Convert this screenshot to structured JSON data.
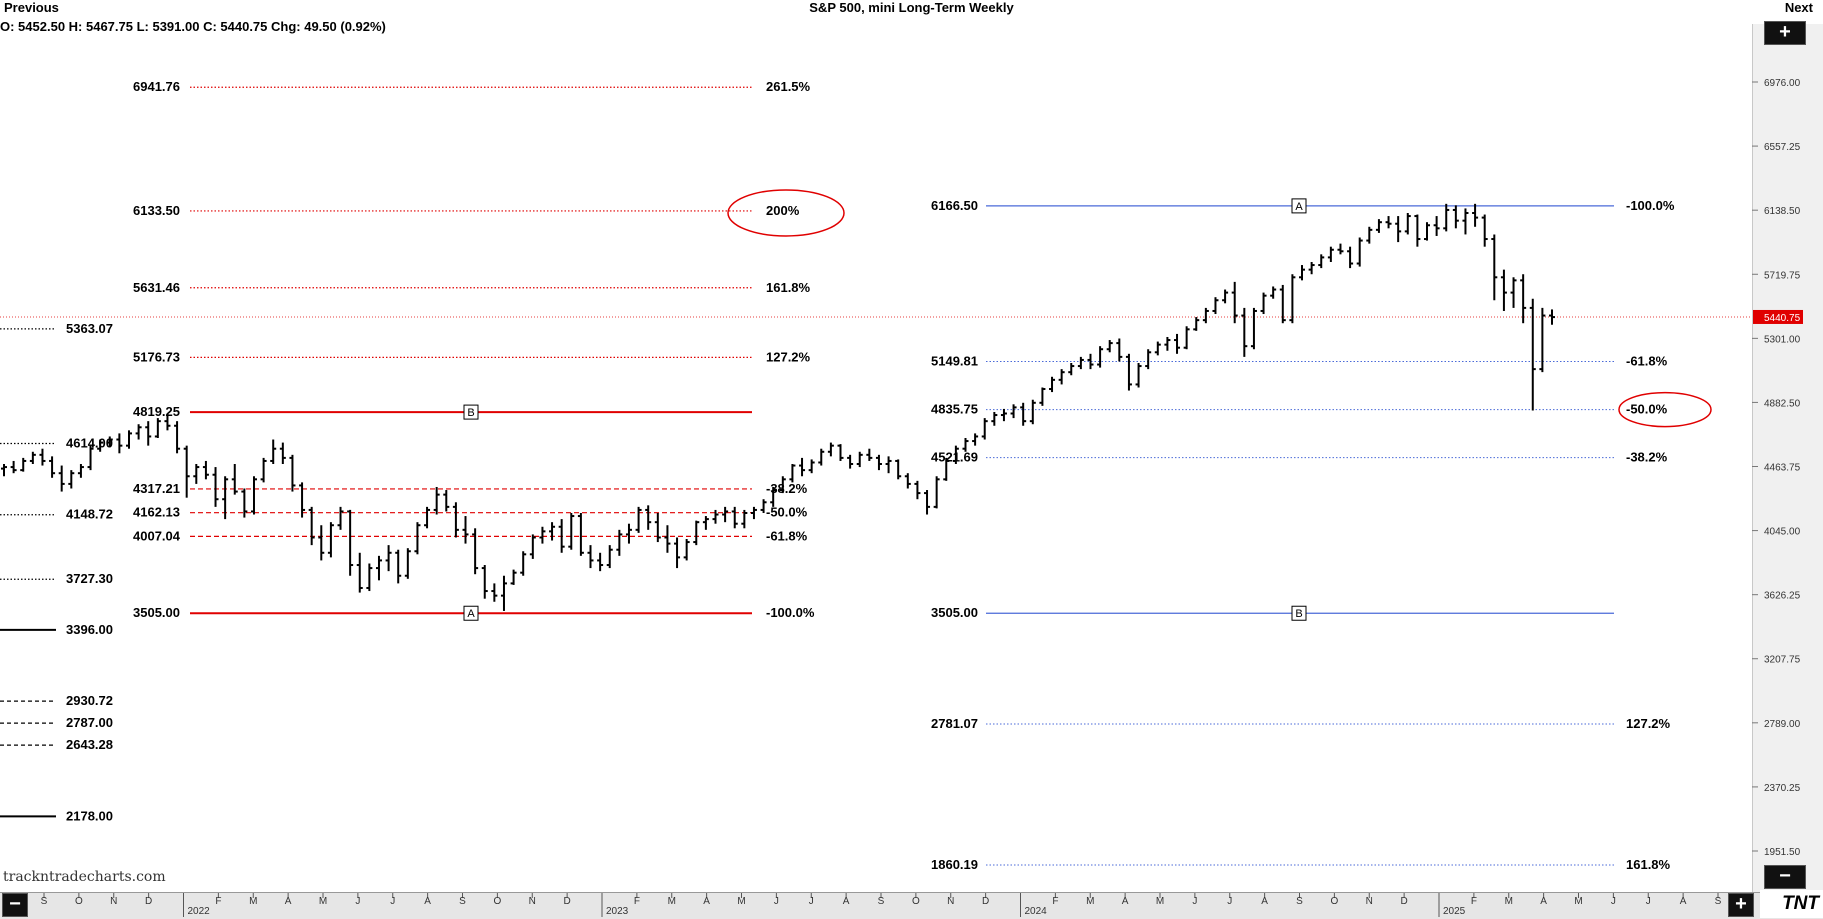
{
  "header": {
    "previous": "Previous",
    "title": "S&P 500, mini Long-Term Weekly",
    "next": "Next"
  },
  "ohlc_text": "O: 5452.50 H: 5467.75  L: 5391.00  C: 5440.75  Chg: 49.50 (0.92%)",
  "watermark": "trackntradecharts.com",
  "logo": "TNT",
  "controls": {
    "plus": "+",
    "minus": "−"
  },
  "colors": {
    "red": "#e00000",
    "blue": "#4a6ad8",
    "bars": "#000000"
  },
  "chart_data": {
    "type": "bar",
    "title": "S&P 500, mini Long-Term Weekly",
    "y_axis_ticks": [
      "6976.00",
      "6557.25",
      "6138.50",
      "5719.75",
      "5301.00",
      "4882.50",
      "4463.75",
      "4045.00",
      "3626.25",
      "3207.75",
      "2789.00",
      "2370.25",
      "1951.50"
    ],
    "y_range": [
      1860,
      6976
    ],
    "last_price_label": "5440.75",
    "x_axis": {
      "months": [
        "S",
        "O",
        "N",
        "D",
        "2022",
        "F",
        "M",
        "A",
        "M",
        "J",
        "J",
        "A",
        "S",
        "O",
        "N",
        "D",
        "2023",
        "F",
        "M",
        "A",
        "M",
        "J",
        "J",
        "A",
        "S",
        "O",
        "N",
        "D",
        "2024",
        "F",
        "M",
        "A",
        "M",
        "J",
        "J",
        "A",
        "S",
        "O",
        "N",
        "D",
        "2025",
        "F",
        "M",
        "A",
        "M",
        "J",
        "J",
        "A",
        "S"
      ],
      "years": [
        "2022",
        "2023",
        "2024",
        "2025"
      ]
    },
    "left_levels": [
      {
        "value": "5363.07",
        "style": "dotted"
      },
      {
        "value": "4614.00",
        "style": "dotted"
      },
      {
        "value": "4148.72",
        "style": "dotted"
      },
      {
        "value": "3727.30",
        "style": "dotted"
      },
      {
        "value": "3396.00",
        "style": "solid"
      },
      {
        "value": "2930.72",
        "style": "dashed"
      },
      {
        "value": "2787.00",
        "style": "dashed"
      },
      {
        "value": "2643.28",
        "style": "dashed"
      },
      {
        "value": "2178.00",
        "style": "solid"
      }
    ],
    "red_fib_levels": [
      {
        "price": "6941.76",
        "pct": "261.5%",
        "style": "dotted"
      },
      {
        "price": "6133.50",
        "pct": "200%",
        "style": "dotted",
        "circled": true
      },
      {
        "price": "5631.46",
        "pct": "161.8%",
        "style": "dotted"
      },
      {
        "price": "5176.73",
        "pct": "127.2%",
        "style": "dotted"
      },
      {
        "price": "4819.25",
        "pct": "",
        "style": "solid",
        "marker": "B"
      },
      {
        "price": "4317.21",
        "pct": "-38.2%",
        "style": "dashed"
      },
      {
        "price": "4162.13",
        "pct": "-50.0%",
        "style": "dashed"
      },
      {
        "price": "4007.04",
        "pct": "-61.8%",
        "style": "dashed"
      },
      {
        "price": "3505.00",
        "pct": "-100.0%",
        "style": "solid",
        "marker": "A"
      }
    ],
    "blue_fib_levels": [
      {
        "price": "6166.50",
        "pct": "-100.0%",
        "style": "solid",
        "marker": "A"
      },
      {
        "price": "5149.81",
        "pct": "-61.8%",
        "style": "dotted"
      },
      {
        "price": "4835.75",
        "pct": "-50.0%",
        "style": "dotted",
        "circled": true
      },
      {
        "price": "4521.69",
        "pct": "-38.2%",
        "style": "dotted"
      },
      {
        "price": "3505.00",
        "pct": "",
        "style": "solid",
        "marker": "B"
      },
      {
        "price": "2781.07",
        "pct": "127.2%",
        "style": "dotted"
      },
      {
        "price": "1860.19",
        "pct": "161.8%",
        "style": "dotted"
      }
    ],
    "series": [
      {
        "values": [
          [
            4450,
            4480,
            4400,
            4460
          ],
          [
            4460,
            4500,
            4420,
            4440
          ],
          [
            4440,
            4520,
            4430,
            4500
          ],
          [
            4500,
            4560,
            4480,
            4540
          ],
          [
            4540,
            4580,
            4470,
            4500
          ],
          [
            4500,
            4530,
            4390,
            4420
          ],
          [
            4420,
            4470,
            4300,
            4350
          ],
          [
            4350,
            4440,
            4320,
            4420
          ],
          [
            4420,
            4480,
            4390,
            4460
          ],
          [
            4460,
            4600,
            4440,
            4580
          ],
          [
            4580,
            4640,
            4560,
            4620
          ],
          [
            4620,
            4660,
            4590,
            4640
          ],
          [
            4640,
            4680,
            4550,
            4600
          ],
          [
            4600,
            4700,
            4580,
            4680
          ],
          [
            4680,
            4740,
            4640,
            4720
          ],
          [
            4720,
            4760,
            4600,
            4660
          ],
          [
            4660,
            4780,
            4650,
            4760
          ],
          [
            4760,
            4810,
            4700,
            4730
          ],
          [
            4730,
            4760,
            4550,
            4580
          ],
          [
            4580,
            4600,
            4260,
            4400
          ],
          [
            4400,
            4480,
            4350,
            4460
          ],
          [
            4460,
            4500,
            4380,
            4410
          ],
          [
            4410,
            4460,
            4200,
            4250
          ],
          [
            4250,
            4400,
            4120,
            4380
          ],
          [
            4380,
            4480,
            4280,
            4300
          ],
          [
            4300,
            4320,
            4130,
            4170
          ],
          [
            4170,
            4400,
            4150,
            4380
          ],
          [
            4380,
            4520,
            4360,
            4500
          ],
          [
            4500,
            4640,
            4480,
            4580
          ],
          [
            4580,
            4620,
            4480,
            4520
          ],
          [
            4520,
            4540,
            4300,
            4340
          ],
          [
            4340,
            4360,
            4130,
            4180
          ],
          [
            4180,
            4200,
            3950,
            4000
          ],
          [
            4000,
            4080,
            3850,
            3900
          ],
          [
            3900,
            4100,
            3870,
            4080
          ],
          [
            4080,
            4200,
            4050,
            4170
          ],
          [
            4170,
            4180,
            3750,
            3820
          ],
          [
            3820,
            3900,
            3640,
            3670
          ],
          [
            3670,
            3830,
            3650,
            3800
          ],
          [
            3800,
            3880,
            3720,
            3850
          ],
          [
            3850,
            3950,
            3780,
            3900
          ],
          [
            3900,
            3920,
            3700,
            3750
          ],
          [
            3750,
            3930,
            3730,
            3910
          ],
          [
            3910,
            4100,
            3890,
            4080
          ],
          [
            4080,
            4200,
            4060,
            4180
          ],
          [
            4180,
            4330,
            4150,
            4280
          ],
          [
            4280,
            4310,
            4170,
            4200
          ],
          [
            4200,
            4230,
            4000,
            4050
          ],
          [
            4050,
            4140,
            3960,
            4020
          ],
          [
            4020,
            4060,
            3760,
            3800
          ],
          [
            3800,
            3820,
            3600,
            3650
          ],
          [
            3650,
            3700,
            3580,
            3620
          ],
          [
            3620,
            3750,
            3520,
            3700
          ],
          [
            3700,
            3790,
            3690,
            3770
          ],
          [
            3770,
            3910,
            3750,
            3890
          ],
          [
            3890,
            4020,
            3860,
            4000
          ],
          [
            4000,
            4070,
            3960,
            4040
          ],
          [
            4040,
            4100,
            3980,
            4070
          ],
          [
            4070,
            4120,
            3900,
            3940
          ],
          [
            3940,
            4160,
            3920,
            4140
          ],
          [
            4140,
            4160,
            3880,
            3900
          ],
          [
            3900,
            3950,
            3800,
            3850
          ],
          [
            3850,
            3900,
            3780,
            3820
          ],
          [
            3820,
            3950,
            3800,
            3920
          ],
          [
            3920,
            4050,
            3880,
            4020
          ],
          [
            4020,
            4090,
            3960,
            4050
          ],
          [
            4050,
            4200,
            4030,
            4180
          ],
          [
            4180,
            4210,
            4050,
            4100
          ],
          [
            4100,
            4160,
            3970,
            4000
          ],
          [
            4000,
            4080,
            3900,
            3960
          ],
          [
            3960,
            4000,
            3800,
            3870
          ],
          [
            3870,
            3990,
            3850,
            3970
          ],
          [
            3970,
            4110,
            3950,
            4100
          ],
          [
            4100,
            4140,
            4050,
            4120
          ],
          [
            4120,
            4180,
            4090,
            4150
          ],
          [
            4150,
            4200,
            4100,
            4170
          ],
          [
            4170,
            4200,
            4060,
            4090
          ],
          [
            4090,
            4180,
            4060,
            4160
          ],
          [
            4160,
            4200,
            4120,
            4180
          ],
          [
            4180,
            4250,
            4160,
            4230
          ],
          [
            4230,
            4330,
            4200,
            4310
          ],
          [
            4310,
            4400,
            4290,
            4380
          ],
          [
            4380,
            4480,
            4360,
            4470
          ],
          [
            4470,
            4520,
            4400,
            4440
          ],
          [
            4440,
            4510,
            4420,
            4490
          ],
          [
            4490,
            4580,
            4470,
            4560
          ],
          [
            4560,
            4620,
            4530,
            4600
          ],
          [
            4600,
            4610,
            4500,
            4520
          ],
          [
            4520,
            4540,
            4450,
            4480
          ],
          [
            4480,
            4560,
            4460,
            4540
          ],
          [
            4540,
            4580,
            4500,
            4520
          ],
          [
            4520,
            4540,
            4440,
            4480
          ],
          [
            4480,
            4530,
            4420,
            4500
          ],
          [
            4500,
            4510,
            4380,
            4400
          ],
          [
            4400,
            4420,
            4320,
            4350
          ],
          [
            4350,
            4370,
            4250,
            4290
          ],
          [
            4290,
            4310,
            4150,
            4200
          ],
          [
            4200,
            4400,
            4190,
            4380
          ],
          [
            4380,
            4520,
            4370,
            4500
          ],
          [
            4500,
            4600,
            4480,
            4580
          ],
          [
            4580,
            4650,
            4560,
            4630
          ],
          [
            4630,
            4680,
            4600,
            4660
          ],
          [
            4660,
            4780,
            4640,
            4760
          ],
          [
            4760,
            4820,
            4730,
            4800
          ],
          [
            4800,
            4840,
            4760,
            4810
          ],
          [
            4810,
            4870,
            4780,
            4850
          ],
          [
            4850,
            4880,
            4730,
            4760
          ],
          [
            4760,
            4900,
            4740,
            4880
          ],
          [
            4880,
            4980,
            4860,
            4970
          ],
          [
            4970,
            5050,
            4950,
            5030
          ],
          [
            5030,
            5100,
            5000,
            5080
          ],
          [
            5080,
            5140,
            5060,
            5120
          ],
          [
            5120,
            5180,
            5100,
            5160
          ],
          [
            5160,
            5200,
            5100,
            5130
          ],
          [
            5130,
            5250,
            5110,
            5230
          ],
          [
            5230,
            5290,
            5210,
            5270
          ],
          [
            5270,
            5300,
            5150,
            5180
          ],
          [
            5180,
            5200,
            4960,
            5000
          ],
          [
            5000,
            5140,
            4980,
            5120
          ],
          [
            5120,
            5230,
            5100,
            5210
          ],
          [
            5210,
            5280,
            5190,
            5260
          ],
          [
            5260,
            5310,
            5220,
            5290
          ],
          [
            5290,
            5330,
            5200,
            5240
          ],
          [
            5240,
            5380,
            5230,
            5360
          ],
          [
            5360,
            5440,
            5350,
            5420
          ],
          [
            5420,
            5500,
            5400,
            5480
          ],
          [
            5480,
            5570,
            5460,
            5550
          ],
          [
            5550,
            5620,
            5530,
            5600
          ],
          [
            5600,
            5670,
            5400,
            5450
          ],
          [
            5450,
            5500,
            5180,
            5250
          ],
          [
            5250,
            5500,
            5230,
            5480
          ],
          [
            5480,
            5600,
            5460,
            5580
          ],
          [
            5580,
            5640,
            5560,
            5620
          ],
          [
            5620,
            5650,
            5400,
            5420
          ],
          [
            5420,
            5720,
            5400,
            5700
          ],
          [
            5700,
            5780,
            5680,
            5750
          ],
          [
            5750,
            5800,
            5720,
            5780
          ],
          [
            5780,
            5850,
            5760,
            5830
          ],
          [
            5830,
            5900,
            5800,
            5880
          ],
          [
            5880,
            5920,
            5850,
            5870
          ],
          [
            5870,
            5900,
            5760,
            5790
          ],
          [
            5790,
            5960,
            5770,
            5940
          ],
          [
            5940,
            6030,
            5920,
            6010
          ],
          [
            6010,
            6080,
            5990,
            6060
          ],
          [
            6060,
            6100,
            6020,
            6050
          ],
          [
            6050,
            6100,
            5930,
            6000
          ],
          [
            6000,
            6120,
            5980,
            6100
          ],
          [
            6100,
            6110,
            5900,
            5950
          ],
          [
            5950,
            6060,
            5940,
            6040
          ],
          [
            6040,
            6100,
            5970,
            6020
          ],
          [
            6020,
            6180,
            6000,
            6140
          ],
          [
            6140,
            6170,
            6020,
            6070
          ],
          [
            6070,
            6150,
            5980,
            6120
          ],
          [
            6120,
            6180,
            6030,
            6090
          ],
          [
            6090,
            6110,
            5900,
            5950
          ],
          [
            5950,
            5980,
            5550,
            5700
          ],
          [
            5700,
            5750,
            5480,
            5600
          ],
          [
            5600,
            5700,
            5500,
            5680
          ],
          [
            5680,
            5720,
            5400,
            5500
          ],
          [
            5500,
            5560,
            4830,
            5100
          ],
          [
            5100,
            5500,
            5080,
            5450
          ],
          [
            5450,
            5490,
            5390,
            5440
          ]
        ]
      }
    ]
  }
}
